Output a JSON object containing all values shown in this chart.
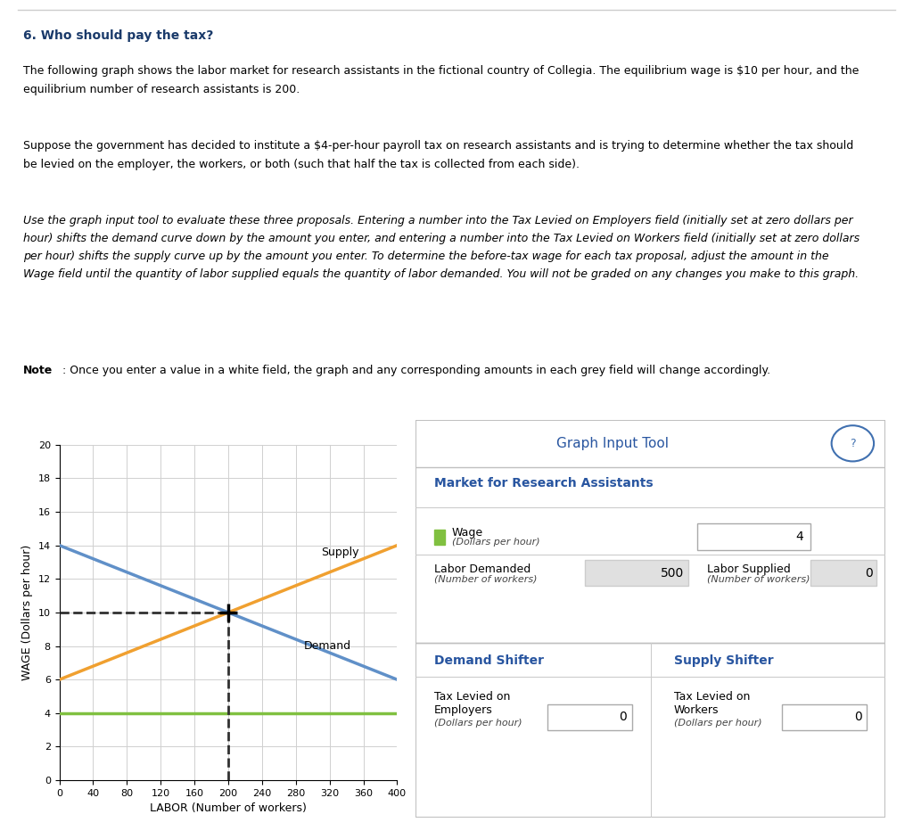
{
  "title": "6. Who should pay the tax?",
  "para1": "The following graph shows the labor market for research assistants in the fictional country of Collegia. The equilibrium wage is $10 per hour, and the\nequilibrium number of research assistants is 200.",
  "para2": "Suppose the government has decided to institute a $4-per-hour payroll tax on research assistants and is trying to determine whether the tax should\nbe levied on the employer, the workers, or both (such that half the tax is collected from each side).",
  "para3_italic": "Use the graph input tool to evaluate these three proposals. Entering a number into the Tax Levied on Employers field (initially set at zero dollars per\nhour) shifts the demand curve down by the amount you enter, and entering a number into the Tax Levied on Workers field (initially set at zero dollars\nper hour) shifts the supply curve up by the amount you enter. To determine the before-tax wage for each tax proposal, adjust the amount in the\nWage field until the quantity of labor supplied equals the quantity of labor demanded. You will not be graded on any changes you make to this graph.",
  "note_bold": "Note",
  "note_rest": ": Once you enter a value in a white field, the graph and any corresponding amounts in each grey field will change accordingly.",
  "graph_input_tool": "Graph Input Tool",
  "market_title": "Market for Research Assistants",
  "wage_value": "4",
  "labor_demanded_value": "500",
  "labor_supplied_value": "0",
  "demand_shifter_label": "Demand Shifter",
  "supply_shifter_label": "Supply Shifter",
  "tax_employer_value": "0",
  "tax_worker_value": "0",
  "supply_color": "#f0a030",
  "demand_color": "#6090c8",
  "wage_line_color": "#80c040",
  "dashed_line_color": "#303030",
  "title_color": "#1a3a6a",
  "header_color": "#2855a0",
  "supply_y_start": 6,
  "supply_y_end": 14,
  "demand_y_start": 14,
  "demand_y_end": 6,
  "equilibrium_x": 200,
  "equilibrium_y": 10,
  "wage_line_y": 4,
  "xlim": [
    0,
    400
  ],
  "ylim": [
    0,
    20
  ],
  "xlabel": "LABOR (Number of workers)",
  "ylabel": "WAGE (Dollars per hour)",
  "yticks": [
    0,
    2,
    4,
    6,
    8,
    10,
    12,
    14,
    16,
    18,
    20
  ],
  "xticks": [
    0,
    40,
    80,
    120,
    160,
    200,
    240,
    280,
    320,
    360,
    400
  ]
}
